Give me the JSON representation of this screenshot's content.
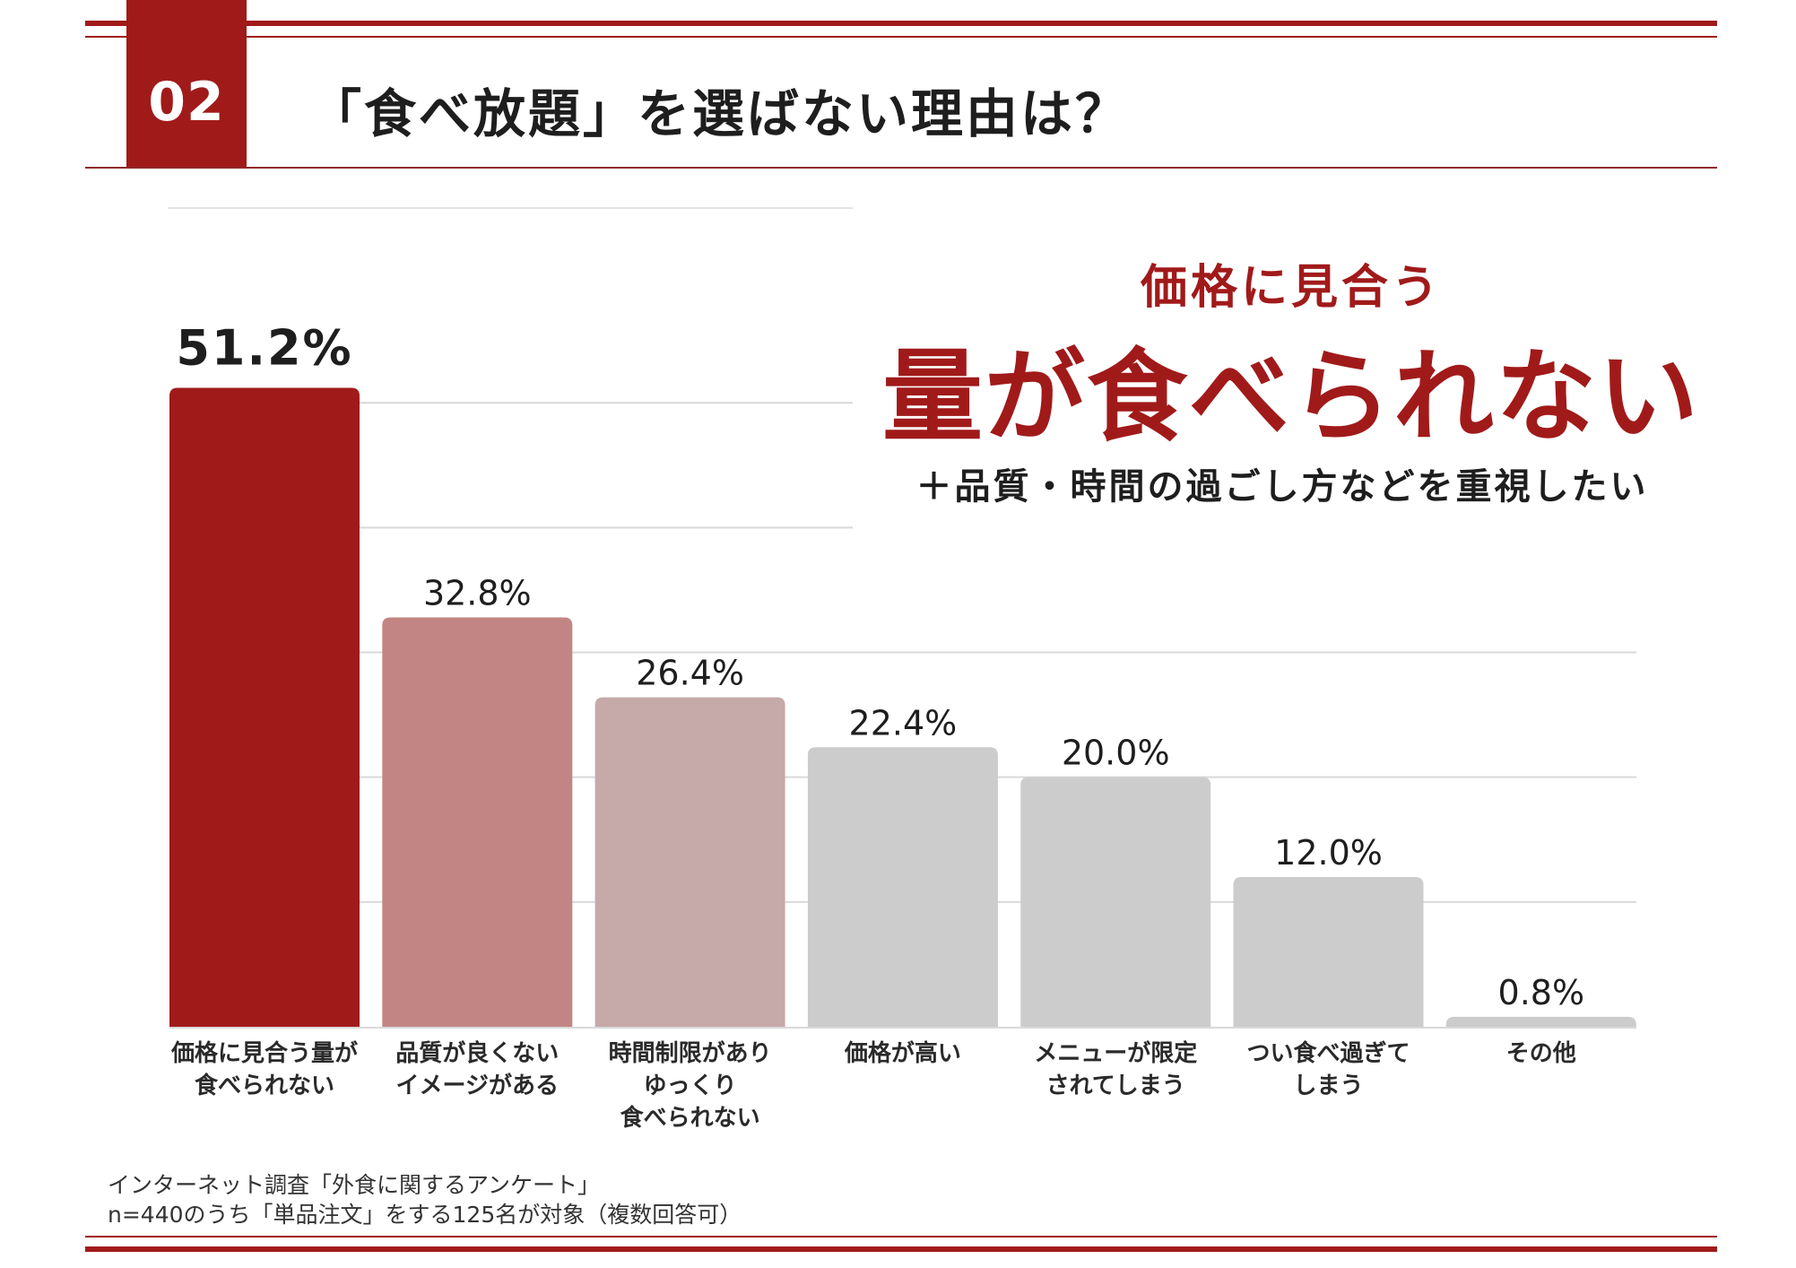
{
  "header": {
    "badge_number": "02",
    "title": "「食べ放題」を選ばない理由は？"
  },
  "callout": {
    "sub": "価格に見合う",
    "main": "量が食べられない",
    "note": "＋品質・時間の過ごし方などを重視したい"
  },
  "footnote": {
    "line1": "インターネット調査「外食に関するアンケート」",
    "line2": "n=440のうち「単品注文」をする125名が対象（複数回答可）"
  },
  "colors": {
    "accent": "#a11a1a",
    "bar_second": "#c38584",
    "bar_third": "#c6a9a9",
    "bar_neutral": "#cccccc",
    "gridline": "#d9d9d9"
  },
  "chart_data": {
    "type": "bar",
    "title": "「食べ放題」を選ばない理由は？",
    "xlabel": "",
    "ylabel": "",
    "ylim": [
      0,
      60
    ],
    "unit": "%",
    "grid": true,
    "categories": [
      [
        "価格に見合う量が",
        "食べられない"
      ],
      [
        "品質が良くない",
        "イメージがある"
      ],
      [
        "時間制限があり",
        "ゆっくり",
        "食べられない"
      ],
      [
        "価格が高い"
      ],
      [
        "メニューが限定",
        "されてしまう"
      ],
      [
        "つい食べ過ぎて",
        "しまう"
      ],
      [
        "その他"
      ]
    ],
    "values": [
      51.2,
      32.8,
      26.4,
      22.4,
      20.0,
      12.0,
      0.8
    ],
    "value_labels": [
      "51.2%",
      "32.8%",
      "26.4%",
      "22.4%",
      "20.0%",
      "12.0%",
      "0.8%"
    ],
    "bar_colors": [
      "#a11a1a",
      "#c38584",
      "#c6a9a9",
      "#cccccc",
      "#cccccc",
      "#cccccc",
      "#cccccc"
    ]
  }
}
